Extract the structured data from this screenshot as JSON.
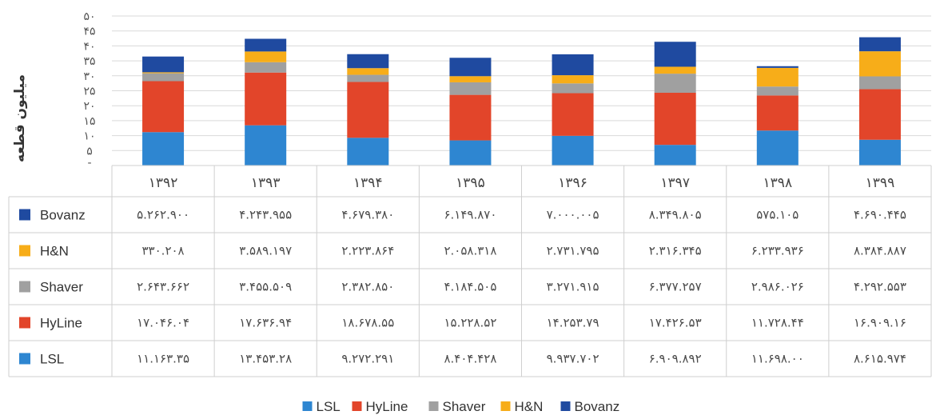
{
  "chart_data": {
    "type": "bar",
    "stacked": true,
    "title": "",
    "ylabel": "میلیون قطعه",
    "ylim": [
      0,
      50
    ],
    "y_ticks": [
      {
        "value": 5,
        "label": "۵"
      },
      {
        "value": 10,
        "label": "۱۰"
      },
      {
        "value": 15,
        "label": "۱۵"
      },
      {
        "value": 20,
        "label": "۲۰"
      },
      {
        "value": 25,
        "label": "۲۵"
      },
      {
        "value": 30,
        "label": "۳۰"
      },
      {
        "value": 35,
        "label": "۳۵"
      },
      {
        "value": 40,
        "label": "۴۰"
      },
      {
        "value": 45,
        "label": "۴۵"
      },
      {
        "value": 50,
        "label": "۵۰"
      }
    ],
    "grid": true,
    "legend_position": "bottom",
    "categories": [
      "۱۳۹۲",
      "۱۳۹۳",
      "۱۳۹۴",
      "۱۳۹۵",
      "۱۳۹۶",
      "۱۳۹۷",
      "۱۳۹۸",
      "۱۳۹۹"
    ],
    "series": [
      {
        "name": "LSL",
        "color": "#2e86d1",
        "values": [
          11.16335,
          13.45328,
          9.272291,
          8.404428,
          9.937702,
          6.909892,
          11.698,
          8.615974
        ],
        "labels": [
          "۱۱.۱۶۳.۳۵",
          "۱۳.۴۵۳.۲۸",
          "۹.۲۷۲.۲۹۱",
          "۸.۴۰۴.۴۲۸",
          "۹.۹۳۷.۷۰۲",
          "۶.۹۰۹.۸۹۲",
          "۱۱.۶۹۸.۰۰",
          "۸.۶۱۵.۹۷۴"
        ]
      },
      {
        "name": "HyLine",
        "color": "#e2452a",
        "values": [
          17.046,
          17.63694,
          18.67855,
          15.22852,
          14.25379,
          17.42653,
          11.72844,
          16.90916
        ],
        "labels": [
          "۱۷.۰۴۶.۰۴",
          "۱۷.۶۳۶.۹۴",
          "۱۸.۶۷۸.۵۵",
          "۱۵.۲۲۸.۵۲",
          "۱۴.۲۵۳.۷۹",
          "۱۷.۴۲۶.۵۳",
          "۱۱.۷۲۸.۴۴",
          "۱۶.۹۰۹.۱۶"
        ]
      },
      {
        "name": "Shaver",
        "color": "#a0a0a0",
        "values": [
          2.643662,
          3.455509,
          2.38285,
          4.184505,
          3.27191,
          6.377257,
          2.986026,
          4.292553
        ],
        "labels": [
          "۲.۶۴۳.۶۶۲",
          "۳.۴۵۵.۵۰۹",
          "۲.۳۸۲.۸۵۰",
          "۴.۱۸۴.۵۰۵",
          "۳.۲۷۱.۹۱۵",
          "۶.۳۷۷.۲۵۷",
          "۲.۹۸۶.۰۲۶",
          "۴.۲۹۲.۵۵۳"
        ]
      },
      {
        "name": "H&N",
        "color": "#f7ad19",
        "values": [
          0.330208,
          3.589197,
          2.223864,
          2.058318,
          2.731795,
          2.316345,
          6.233936,
          8.384887
        ],
        "labels": [
          "۳۳۰.۲۰۸",
          "۳.۵۸۹.۱۹۷",
          "۲.۲۲۳.۸۶۴",
          "۲.۰۵۸.۳۱۸",
          "۲.۷۳۱.۷۹۵",
          "۲.۳۱۶.۳۴۵",
          "۶.۲۳۳.۹۳۶",
          "۸.۳۸۴.۸۸۷"
        ]
      },
      {
        "name": "Bovanz",
        "color": "#1f4aa0",
        "values": [
          5.2629,
          4.243955,
          4.67938,
          6.14987,
          7.000005,
          8.349805,
          0.575105,
          4.690445
        ],
        "labels": [
          "۵.۲۶۲.۹۰۰",
          "۴.۲۴۳.۹۵۵",
          "۴.۶۷۹.۳۸۰",
          "۶.۱۴۹.۸۷۰",
          "۷.۰۰۰.۰۰۵",
          "۸.۳۴۹.۸۰۵",
          "۵۷۵.۱۰۵",
          "۴.۶۹۰.۴۴۵"
        ]
      }
    ]
  },
  "table": {
    "row_order": [
      "Bovanz",
      "H&N",
      "Shaver",
      "HyLine",
      "LSL"
    ]
  },
  "legend": {
    "items": [
      "LSL",
      "HyLine",
      "Shaver",
      "H&N",
      "Bovanz"
    ]
  }
}
